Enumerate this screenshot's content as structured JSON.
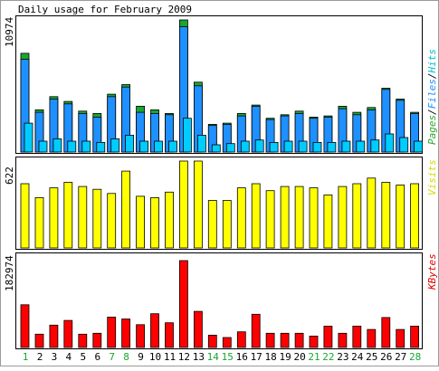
{
  "chart_data": [
    {
      "type": "bar",
      "title": "Daily usage for February 2009",
      "ylabel_parts": [
        {
          "text": "Pages",
          "color": "#2ba62b"
        },
        {
          "text": "/",
          "color": "#000000"
        },
        {
          "text": "Files",
          "color": "#1e90ff"
        },
        {
          "text": "/",
          "color": "#000000"
        },
        {
          "text": "Hits",
          "color": "#00bcd4"
        }
      ],
      "y_max_label": "10974",
      "categories": [
        "1",
        "2",
        "3",
        "4",
        "5",
        "6",
        "7",
        "8",
        "9",
        "10",
        "11",
        "12",
        "13",
        "14",
        "15",
        "16",
        "17",
        "18",
        "19",
        "20",
        "21",
        "22",
        "23",
        "24",
        "25",
        "26",
        "27",
        "28"
      ],
      "weekend_days": [
        "1",
        "7",
        "8",
        "14",
        "15",
        "21",
        "22",
        "28"
      ],
      "ylim": [
        0,
        10974
      ],
      "series": [
        {
          "name": "Hits",
          "color": "#1aa531",
          "values": [
            8200,
            3500,
            4600,
            4200,
            3400,
            3200,
            4800,
            5600,
            3800,
            3500,
            3200,
            10974,
            5800,
            2300,
            2400,
            3200,
            3900,
            2800,
            3100,
            3400,
            2900,
            3000,
            3800,
            3300,
            3700,
            5300,
            4400,
            3300
          ]
        },
        {
          "name": "Files",
          "color": "#1e90ff",
          "values": [
            7700,
            3300,
            4400,
            4000,
            3200,
            2900,
            4600,
            5400,
            3300,
            3200,
            3100,
            10400,
            5500,
            2200,
            2300,
            3000,
            3800,
            2700,
            3000,
            3200,
            2800,
            2900,
            3600,
            3100,
            3500,
            5200,
            4300,
            3200
          ]
        },
        {
          "name": "Pages",
          "color": "#00ccff",
          "values": [
            2400,
            900,
            1100,
            900,
            900,
            800,
            1100,
            1400,
            900,
            900,
            900,
            2800,
            1400,
            600,
            700,
            900,
            1000,
            800,
            900,
            900,
            800,
            800,
            900,
            900,
            1000,
            1500,
            1200,
            900
          ]
        }
      ]
    },
    {
      "type": "bar",
      "ylabel": "Visits",
      "ylabel_color": "#d8d800",
      "y_max_label": "622",
      "ylim": [
        0,
        622
      ],
      "series": [
        {
          "name": "Visits",
          "color": "#ffff00",
          "values": [
            460,
            360,
            430,
            470,
            440,
            420,
            390,
            550,
            370,
            360,
            400,
            622,
            622,
            340,
            340,
            430,
            460,
            410,
            440,
            440,
            430,
            380,
            440,
            460,
            500,
            470,
            450,
            460
          ]
        }
      ]
    },
    {
      "type": "bar",
      "ylabel": "KBytes",
      "ylabel_color": "#e00000",
      "y_max_label": "182974",
      "ylim": [
        0,
        182974
      ],
      "series": [
        {
          "name": "KBytes",
          "color": "#ff0000",
          "values": [
            90000,
            28000,
            47000,
            57000,
            28000,
            30000,
            64000,
            60000,
            48000,
            71000,
            52000,
            182974,
            76000,
            26000,
            21000,
            33000,
            70000,
            30000,
            30000,
            30000,
            24000,
            45000,
            30000,
            45000,
            38000,
            63000,
            38000,
            45000
          ]
        }
      ]
    }
  ]
}
